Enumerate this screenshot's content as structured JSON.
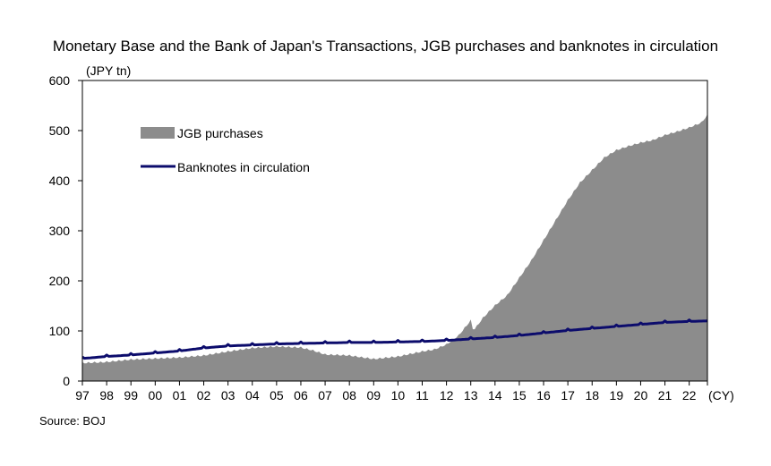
{
  "chart_data": {
    "type": "area",
    "title": "Monetary Base and the Bank of Japan's Transactions, JGB purchases and banknotes in circulation",
    "ylabel": "(JPY tn)",
    "xlabel": "(CY)",
    "ylim": [
      0,
      600
    ],
    "xlim": [
      1997,
      2022.75
    ],
    "y_ticks": [
      "0",
      "100",
      "200",
      "300",
      "400",
      "500",
      "600"
    ],
    "x_ticks": [
      "97",
      "98",
      "99",
      "00",
      "01",
      "02",
      "03",
      "04",
      "05",
      "06",
      "07",
      "08",
      "09",
      "10",
      "11",
      "12",
      "13",
      "14",
      "15",
      "16",
      "17",
      "18",
      "19",
      "20",
      "21",
      "22"
    ],
    "legend_position": "top-left",
    "grid": false,
    "series": [
      {
        "name": "JGB purchases",
        "style": "area",
        "color": "#8c8c8c",
        "x": [
          1997,
          1998,
          1999,
          2000,
          2001,
          2002,
          2003,
          2004,
          2005,
          2006,
          2006.5,
          2007,
          2008,
          2009,
          2010,
          2011,
          2011.5,
          2012,
          2012.5,
          2013,
          2013.1,
          2013.2,
          2013.5,
          2014,
          2014.5,
          2015,
          2015.5,
          2016,
          2016.5,
          2017,
          2017.5,
          2018,
          2018.5,
          2019,
          2019.5,
          2020,
          2020.5,
          2021,
          2021.5,
          2022,
          2022.5,
          2022.75
        ],
        "values": [
          35,
          37,
          42,
          44,
          46,
          50,
          58,
          65,
          68,
          66,
          60,
          52,
          50,
          43,
          48,
          58,
          62,
          72,
          90,
          120,
          100,
          105,
          125,
          150,
          170,
          205,
          240,
          280,
          320,
          360,
          395,
          420,
          445,
          460,
          468,
          475,
          480,
          490,
          497,
          505,
          515,
          530
        ]
      },
      {
        "name": "Banknotes in circulation",
        "style": "line",
        "color": "#0c0c6c",
        "x": [
          1997,
          1998,
          1999,
          2000,
          2001,
          2002,
          2003,
          2004,
          2005,
          2006,
          2007,
          2008,
          2009,
          2010,
          2011,
          2012,
          2013,
          2014,
          2015,
          2016,
          2017,
          2018,
          2019,
          2020,
          2021,
          2022,
          2022.75
        ],
        "values": [
          45,
          49,
          52,
          56,
          60,
          66,
          70,
          72,
          74,
          75,
          76,
          77,
          77,
          78,
          79,
          81,
          84,
          87,
          91,
          96,
          101,
          105,
          109,
          113,
          117,
          119,
          120
        ]
      }
    ]
  },
  "source": "Source: BOJ"
}
